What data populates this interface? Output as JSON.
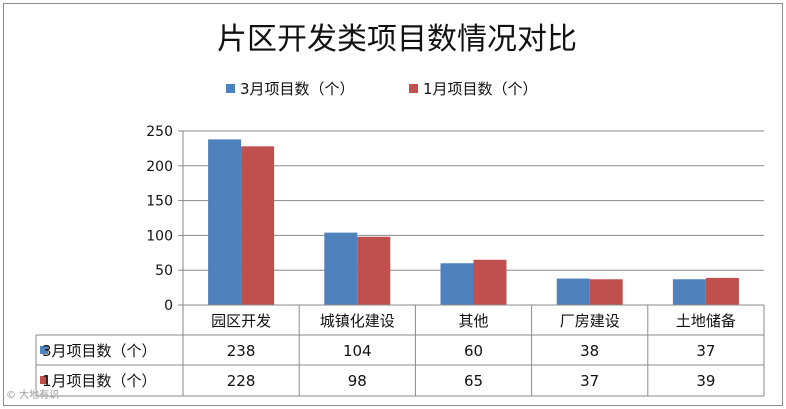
{
  "chart_data": {
    "type": "bar",
    "title": "片区开发类项目数情况对比",
    "categories": [
      "园区开发",
      "城镇化建设",
      "其他",
      "厂房建设",
      "土地储备"
    ],
    "series": [
      {
        "name": "3月项目数（个）",
        "values": [
          238,
          104,
          60,
          38,
          37
        ],
        "color": "#4f81bd"
      },
      {
        "name": "1月项目数（个）",
        "values": [
          228,
          98,
          65,
          37,
          39
        ],
        "color": "#c0504d"
      }
    ],
    "ylim": [
      0,
      250
    ],
    "yticks": [
      0,
      50,
      100,
      150,
      200,
      250
    ],
    "grid": true,
    "legend_position": "top",
    "data_table": true
  },
  "watermark": "© 大地有识"
}
